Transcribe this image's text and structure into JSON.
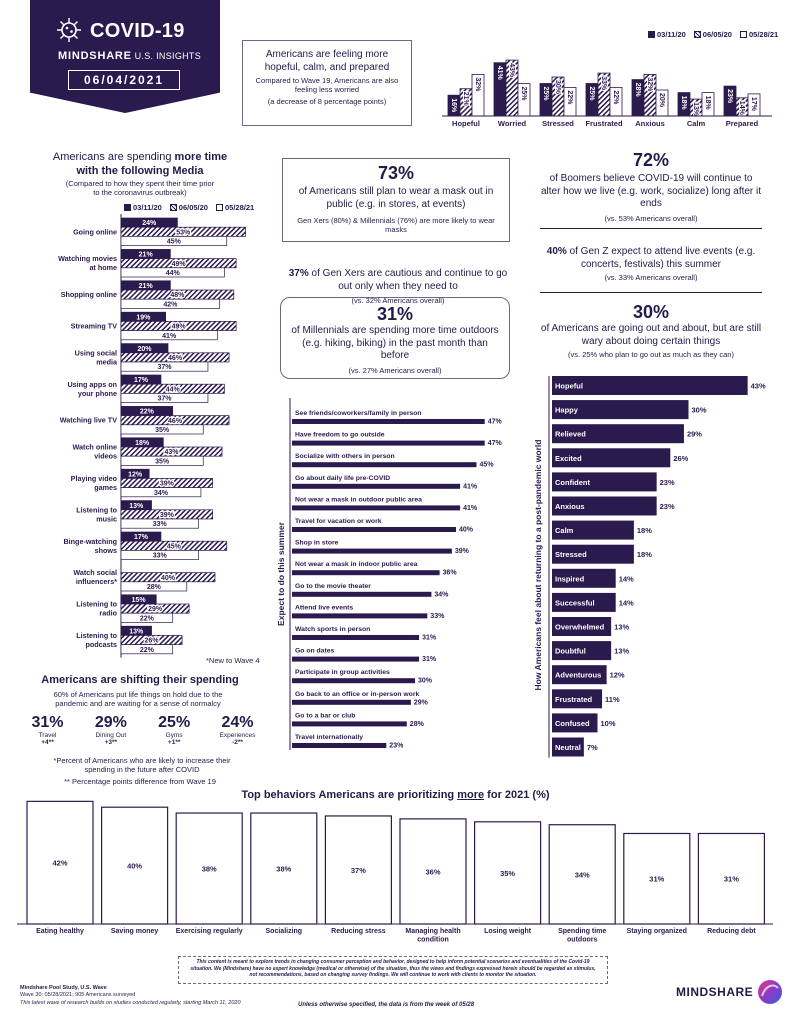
{
  "header": {
    "title": "COVID-19",
    "brand": "MINDSHARE",
    "subtitle": "U.S. INSIGHTS",
    "date": "06/04/2021"
  },
  "legend": [
    "03/11/20",
    "06/05/20",
    "05/28/21"
  ],
  "colors": {
    "dark": "#2b1a4e",
    "accent": "#3d2b6b"
  },
  "mood_box": {
    "headline": "Americans are feeling more hopeful, calm, and prepared",
    "line1": "Compared to Wave 19, Americans are also feeling less worried",
    "line2": "(a decrease of 8 percentage points)"
  },
  "stat_mask": {
    "pct": "73%",
    "text": "of Americans still plan to wear a mask out in public (e.g. in stores, at events)",
    "sub": "Gen Xers (80%) & Millennials (76%) are more likely to wear masks"
  },
  "stat_genx": {
    "pct": "37%",
    "text": "of Gen Xers are cautious and continue to go out only when they need to",
    "sub": "(vs. 32% Americans overall)"
  },
  "stat_millennials": {
    "pct": "31%",
    "text": "of Millennials are spending more time outdoors (e.g. hiking, biking) in the past month than before",
    "sub": "(vs. 27% Americans overall)"
  },
  "stat_boomers": {
    "pct": "72%",
    "text": "of Boomers believe COVID-19 will continue to alter how we live (e.g. work, socialize) long after it ends",
    "sub": "(vs. 53% Americans overall)"
  },
  "stat_genz": {
    "pct": "40%",
    "text": "of Gen Z expect to attend live events (e.g. concerts, festivals) this summer",
    "sub": "(vs. 33% Americans overall)"
  },
  "stat_going_out": {
    "pct": "30%",
    "text": "of Americans are going out and about, but are still wary about doing certain things",
    "sub": "(vs. 25% who plan to go out as much as they can)"
  },
  "media_section": {
    "title_prefix": "Americans are spending ",
    "title_bold": "more time",
    "title_line2": "with the following Media",
    "sub1": "(Compared to how they spent their time prior",
    "sub2": "to the coronavirus outbreak)",
    "footnote": "*New to Wave 4"
  },
  "spending": {
    "title": "Americans are shifting their spending",
    "sub": "60% of Americans put life things on hold due to the pandemic and are waiting for a sense of normalcy",
    "items": [
      {
        "pct": "31%",
        "label": "Travel",
        "delta": "+4**"
      },
      {
        "pct": "29%",
        "label": "Dining Out",
        "delta": "+3**"
      },
      {
        "pct": "25%",
        "label": "Gyms",
        "delta": "+1**"
      },
      {
        "pct": "24%",
        "label": "Experiences",
        "delta": "-2**"
      }
    ],
    "note1": "*Percent of Americans who are likely to increase their spending in the future after COVID",
    "note2": "** Percentage points difference from Wave 19"
  },
  "summer_axis_label": "Expect to do this summer",
  "feelings_axis_label": "How Americans feel about returning to a post-pandemic world",
  "priorities_title_a": "Top behaviors Americans are prioritizing ",
  "priorities_title_u": "more",
  "priorities_title_b": " for 2021 (%)",
  "footer": {
    "disclaimer1": "This content is meant to explore trends in changing consumer perception and behavior, designed to help inform potential scenarios and eventualities of the Covid-19",
    "disclaimer2": "situation. We (Mindshare) have no expert knowledge (medical or otherwise) of the situation, thus the views and findings expressed herein should be regarded as stimulus,",
    "disclaimer3": "not recommendations, based on changing survey findings. We will continue to work with clients to monitor the situation.",
    "source1": "Mindshare Pool Study, U.S. Wave",
    "source2": "Wave 30: 05/28/2021; 905 Americans surveyed",
    "source3": "This latest wave of research builds on studies conducted regularly, starting March 11, 2020",
    "week": "Unless otherwise specified, the data is from the week of 05/28",
    "logo": "MINDSHARE"
  },
  "chart_data": [
    {
      "id": "mood",
      "type": "bar",
      "categories": [
        "Hopeful",
        "Worried",
        "Stressed",
        "Frustrated",
        "Anxious",
        "Calm",
        "Prepared"
      ],
      "series": [
        {
          "name": "03/11/20",
          "values": [
            16,
            41,
            25,
            25,
            28,
            18,
            23
          ]
        },
        {
          "name": "06/05/20",
          "values": [
            21,
            43,
            30,
            33,
            32,
            13,
            14
          ]
        },
        {
          "name": "05/28/21",
          "values": [
            32,
            25,
            22,
            22,
            20,
            18,
            17
          ]
        }
      ]
    },
    {
      "id": "media",
      "type": "bar",
      "orientation": "horizontal",
      "categories": [
        "Going online",
        "Watching movies at home",
        "Shopping online",
        "Streaming TV",
        "Using social media",
        "Using apps on your phone",
        "Watching live TV",
        "Watch online videos",
        "Playing video games",
        "Listening to music",
        "Binge-watching shows",
        "Watch social influencers*",
        "Listening to radio",
        "Listening to podcasts"
      ],
      "series": [
        {
          "name": "03/11/20",
          "values": [
            24,
            21,
            21,
            19,
            20,
            17,
            22,
            18,
            12,
            13,
            17,
            null,
            15,
            13
          ]
        },
        {
          "name": "06/05/20",
          "values": [
            53,
            49,
            48,
            49,
            46,
            44,
            46,
            43,
            39,
            39,
            45,
            40,
            29,
            26
          ]
        },
        {
          "name": "05/28/21",
          "values": [
            45,
            44,
            42,
            41,
            37,
            37,
            35,
            35,
            34,
            33,
            33,
            28,
            22,
            22
          ]
        }
      ]
    },
    {
      "id": "summer",
      "type": "bar",
      "orientation": "horizontal",
      "categories": [
        "See friends/coworkers/family in person",
        "Have freedom to go outside",
        "Socialize with others in person",
        "Go about daily life pre-COVID",
        "Not wear a mask in outdoor public area",
        "Travel for vacation or work",
        "Shop in store",
        "Not wear a mask in indoor public area",
        "Go to the movie theater",
        "Attend live events",
        "Watch sports in person",
        "Go on dates",
        "Participate in group activities",
        "Go back to an office or in-person work",
        "Go to a bar or club",
        "Travel internationally"
      ],
      "values": [
        47,
        47,
        45,
        41,
        41,
        40,
        39,
        36,
        34,
        33,
        31,
        31,
        30,
        29,
        28,
        23
      ]
    },
    {
      "id": "feelings",
      "type": "bar",
      "orientation": "horizontal",
      "categories": [
        "Hopeful",
        "Happy",
        "Relieved",
        "Excited",
        "Confident",
        "Anxious",
        "Calm",
        "Stressed",
        "Inspired",
        "Successful",
        "Overwhelmed",
        "Doubtful",
        "Adventurous",
        "Frustrated",
        "Confused",
        "Neutral"
      ],
      "values": [
        43,
        30,
        29,
        26,
        23,
        23,
        18,
        18,
        14,
        14,
        13,
        13,
        12,
        11,
        10,
        7
      ]
    },
    {
      "id": "priorities",
      "type": "bar",
      "categories": [
        "Eating healthy",
        "Saving money",
        "Exercising regularly",
        "Socializing",
        "Reducing stress",
        "Managing health condition",
        "Losing weight",
        "Spending time outdoors",
        "Staying organized",
        "Reducing debt"
      ],
      "values": [
        42,
        40,
        38,
        38,
        37,
        36,
        35,
        34,
        31,
        31
      ]
    }
  ]
}
